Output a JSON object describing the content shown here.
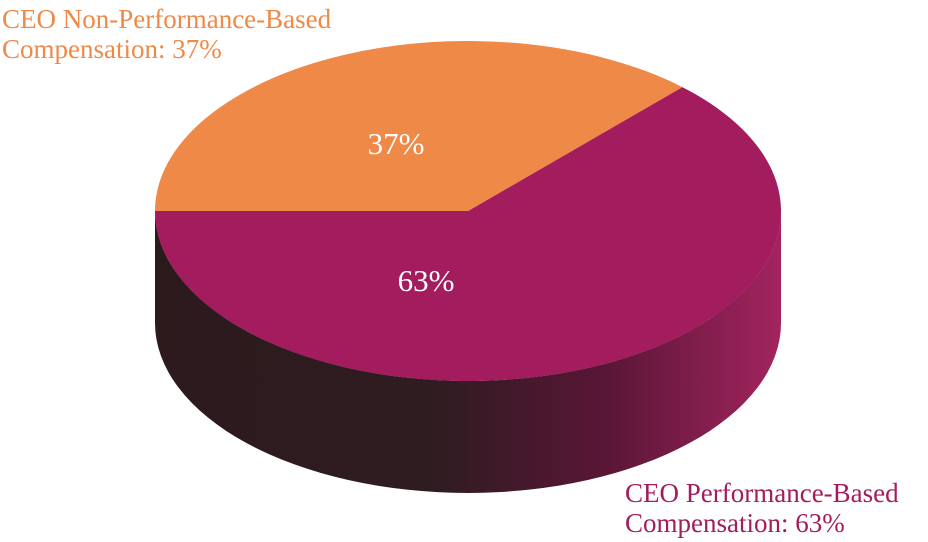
{
  "chart_data": {
    "type": "pie",
    "style": "3d",
    "title": "",
    "slices": [
      {
        "name": "CEO Performance-Based Compensation",
        "value": 63,
        "label": "63%",
        "callout_line1": "CEO Performance-Based",
        "callout_line2": "Compensation: 63%",
        "color": "#A21C5E"
      },
      {
        "name": "CEO Non-Performance-Based Compensation",
        "value": 37,
        "label": "37%",
        "callout_line1": "CEO Non-Performance-Based",
        "callout_line2": "Compensation: 37%",
        "color": "#EE8948"
      }
    ]
  }
}
